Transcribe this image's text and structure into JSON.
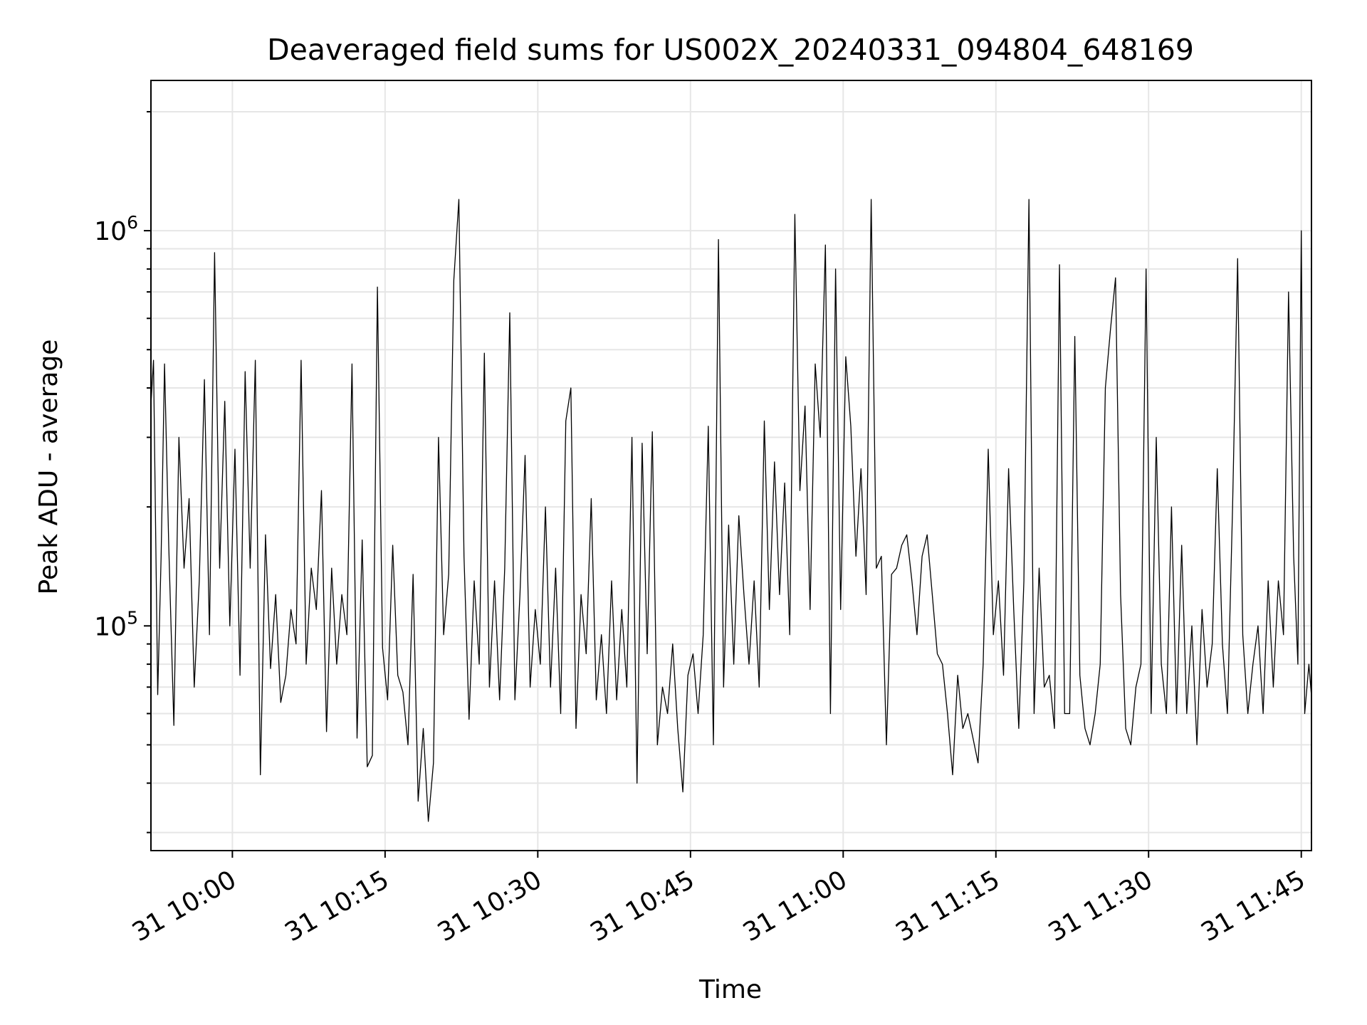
{
  "chart_data": {
    "type": "line",
    "title": "Deaveraged field sums for US002X_20240331_094804_648169",
    "xlabel": "Time",
    "ylabel": "Peak ADU - average",
    "yscale": "log",
    "ylim": [
      27000,
      2400000
    ],
    "xlim": [
      "31 09:52",
      "31 11:46"
    ],
    "grid": true,
    "line_color": "#000000",
    "grid_color": "#e6e6e6",
    "x_ticks": [
      {
        "label": "31 10:00",
        "value": "31 10:00"
      },
      {
        "label": "31 10:15",
        "value": "31 10:15"
      },
      {
        "label": "31 10:30",
        "value": "31 10:30"
      },
      {
        "label": "31 10:45",
        "value": "31 10:45"
      },
      {
        "label": "31 11:00",
        "value": "31 11:00"
      },
      {
        "label": "31 11:15",
        "value": "31 11:15"
      },
      {
        "label": "31 11:30",
        "value": "31 11:30"
      },
      {
        "label": "31 11:45",
        "value": "31 11:45"
      }
    ],
    "y_ticks": [
      {
        "base": "10",
        "exp": "5",
        "value": 100000
      },
      {
        "base": "10",
        "exp": "6",
        "value": 1000000
      }
    ],
    "series": [
      {
        "points": [
          [
            "31 09:52",
            280000
          ],
          [
            "31 09:52",
            470000
          ],
          [
            "31 09:53",
            67000
          ],
          [
            "31 09:53",
            150000
          ],
          [
            "31 09:53",
            460000
          ],
          [
            "31 09:54",
            160000
          ],
          [
            "31 09:54",
            56000
          ],
          [
            "31 09:55",
            300000
          ],
          [
            "31 09:55",
            140000
          ],
          [
            "31 09:56",
            210000
          ],
          [
            "31 09:56",
            70000
          ],
          [
            "31 09:57",
            130000
          ],
          [
            "31 09:57",
            420000
          ],
          [
            "31 09:58",
            95000
          ],
          [
            "31 09:58",
            880000
          ],
          [
            "31 09:59",
            140000
          ],
          [
            "31 09:59",
            370000
          ],
          [
            "31 10:00",
            100000
          ],
          [
            "31 10:00",
            280000
          ],
          [
            "31 10:01",
            75000
          ],
          [
            "31 10:01",
            440000
          ],
          [
            "31 10:02",
            140000
          ],
          [
            "31 10:02",
            470000
          ],
          [
            "31 10:03",
            42000
          ],
          [
            "31 10:03",
            170000
          ],
          [
            "31 10:04",
            78000
          ],
          [
            "31 10:04",
            120000
          ],
          [
            "31 10:05",
            64000
          ],
          [
            "31 10:05",
            75000
          ],
          [
            "31 10:06",
            110000
          ],
          [
            "31 10:06",
            90000
          ],
          [
            "31 10:07",
            470000
          ],
          [
            "31 10:07",
            80000
          ],
          [
            "31 10:08",
            140000
          ],
          [
            "31 10:08",
            110000
          ],
          [
            "31 10:09",
            220000
          ],
          [
            "31 10:09",
            54000
          ],
          [
            "31 10:10",
            140000
          ],
          [
            "31 10:10",
            80000
          ],
          [
            "31 10:11",
            120000
          ],
          [
            "31 10:11",
            95000
          ],
          [
            "31 10:12",
            460000
          ],
          [
            "31 10:12",
            52000
          ],
          [
            "31 10:13",
            165000
          ],
          [
            "31 10:13",
            44000
          ],
          [
            "31 10:14",
            47000
          ],
          [
            "31 10:14",
            720000
          ],
          [
            "31 10:15",
            88000
          ],
          [
            "31 10:15",
            65000
          ],
          [
            "31 10:16",
            160000
          ],
          [
            "31 10:16",
            75000
          ],
          [
            "31 10:17",
            68000
          ],
          [
            "31 10:17",
            50000
          ],
          [
            "31 10:18",
            135000
          ],
          [
            "31 10:18",
            36000
          ],
          [
            "31 10:19",
            55000
          ],
          [
            "31 10:19",
            32000
          ],
          [
            "31 10:20",
            45000
          ],
          [
            "31 10:20",
            300000
          ],
          [
            "31 10:21",
            95000
          ],
          [
            "31 10:21",
            135000
          ],
          [
            "31 10:22",
            750000
          ],
          [
            "31 10:22",
            1200000
          ],
          [
            "31 10:23",
            150000
          ],
          [
            "31 10:23",
            58000
          ],
          [
            "31 10:24",
            130000
          ],
          [
            "31 10:24",
            80000
          ],
          [
            "31 10:25",
            490000
          ],
          [
            "31 10:25",
            70000
          ],
          [
            "31 10:26",
            130000
          ],
          [
            "31 10:26",
            65000
          ],
          [
            "31 10:27",
            140000
          ],
          [
            "31 10:27",
            620000
          ],
          [
            "31 10:28",
            65000
          ],
          [
            "31 10:28",
            120000
          ],
          [
            "31 10:29",
            270000
          ],
          [
            "31 10:29",
            70000
          ],
          [
            "31 10:30",
            110000
          ],
          [
            "31 10:30",
            80000
          ],
          [
            "31 10:31",
            200000
          ],
          [
            "31 10:31",
            70000
          ],
          [
            "31 10:32",
            140000
          ],
          [
            "31 10:32",
            60000
          ],
          [
            "31 10:33",
            330000
          ],
          [
            "31 10:33",
            400000
          ],
          [
            "31 10:34",
            55000
          ],
          [
            "31 10:34",
            120000
          ],
          [
            "31 10:35",
            85000
          ],
          [
            "31 10:35",
            210000
          ],
          [
            "31 10:36",
            65000
          ],
          [
            "31 10:36",
            95000
          ],
          [
            "31 10:37",
            60000
          ],
          [
            "31 10:37",
            130000
          ],
          [
            "31 10:38",
            65000
          ],
          [
            "31 10:38",
            110000
          ],
          [
            "31 10:39",
            70000
          ],
          [
            "31 10:39",
            300000
          ],
          [
            "31 10:40",
            40000
          ],
          [
            "31 10:40",
            290000
          ],
          [
            "31 10:41",
            85000
          ],
          [
            "31 10:41",
            310000
          ],
          [
            "31 10:42",
            50000
          ],
          [
            "31 10:42",
            70000
          ],
          [
            "31 10:43",
            60000
          ],
          [
            "31 10:43",
            90000
          ],
          [
            "31 10:44",
            55000
          ],
          [
            "31 10:44",
            38000
          ],
          [
            "31 10:45",
            75000
          ],
          [
            "31 10:45",
            85000
          ],
          [
            "31 10:46",
            60000
          ],
          [
            "31 10:46",
            95000
          ],
          [
            "31 10:47",
            320000
          ],
          [
            "31 10:47",
            50000
          ],
          [
            "31 10:48",
            950000
          ],
          [
            "31 10:48",
            70000
          ],
          [
            "31 10:49",
            180000
          ],
          [
            "31 10:49",
            80000
          ],
          [
            "31 10:50",
            190000
          ],
          [
            "31 10:50",
            120000
          ],
          [
            "31 10:51",
            80000
          ],
          [
            "31 10:51",
            130000
          ],
          [
            "31 10:52",
            70000
          ],
          [
            "31 10:52",
            330000
          ],
          [
            "31 10:53",
            110000
          ],
          [
            "31 10:53",
            260000
          ],
          [
            "31 10:54",
            120000
          ],
          [
            "31 10:54",
            230000
          ],
          [
            "31 10:55",
            95000
          ],
          [
            "31 10:55",
            1100000
          ],
          [
            "31 10:56",
            220000
          ],
          [
            "31 10:56",
            360000
          ],
          [
            "31 10:57",
            110000
          ],
          [
            "31 10:57",
            460000
          ],
          [
            "31 10:58",
            300000
          ],
          [
            "31 10:58",
            920000
          ],
          [
            "31 10:59",
            60000
          ],
          [
            "31 10:59",
            800000
          ],
          [
            "31 11:00",
            110000
          ],
          [
            "31 11:00",
            480000
          ],
          [
            "31 11:01",
            320000
          ],
          [
            "31 11:01",
            150000
          ],
          [
            "31 11:02",
            250000
          ],
          [
            "31 11:02",
            120000
          ],
          [
            "31 11:03",
            1200000
          ],
          [
            "31 11:03",
            140000
          ],
          [
            "31 11:04",
            150000
          ],
          [
            "31 11:04",
            50000
          ],
          [
            "31 11:05",
            135000
          ],
          [
            "31 11:05",
            140000
          ],
          [
            "31 11:06",
            160000
          ],
          [
            "31 11:06",
            170000
          ],
          [
            "31 11:07",
            130000
          ],
          [
            "31 11:07",
            95000
          ],
          [
            "31 11:08",
            150000
          ],
          [
            "31 11:08",
            170000
          ],
          [
            "31 11:09",
            120000
          ],
          [
            "31 11:09",
            85000
          ],
          [
            "31 11:10",
            80000
          ],
          [
            "31 11:10",
            60000
          ],
          [
            "31 11:11",
            42000
          ],
          [
            "31 11:11",
            75000
          ],
          [
            "31 11:12",
            55000
          ],
          [
            "31 11:12",
            60000
          ],
          [
            "31 11:13",
            52000
          ],
          [
            "31 11:13",
            45000
          ],
          [
            "31 11:14",
            80000
          ],
          [
            "31 11:14",
            280000
          ],
          [
            "31 11:15",
            95000
          ],
          [
            "31 11:15",
            130000
          ],
          [
            "31 11:16",
            75000
          ],
          [
            "31 11:16",
            250000
          ],
          [
            "31 11:17",
            110000
          ],
          [
            "31 11:17",
            55000
          ],
          [
            "31 11:18",
            130000
          ],
          [
            "31 11:18",
            1200000
          ],
          [
            "31 11:19",
            60000
          ],
          [
            "31 11:19",
            140000
          ],
          [
            "31 11:20",
            70000
          ],
          [
            "31 11:20",
            75000
          ],
          [
            "31 11:21",
            55000
          ],
          [
            "31 11:21",
            820000
          ],
          [
            "31 11:22",
            60000
          ],
          [
            "31 11:22",
            60000
          ],
          [
            "31 11:23",
            540000
          ],
          [
            "31 11:23",
            75000
          ],
          [
            "31 11:24",
            55000
          ],
          [
            "31 11:24",
            50000
          ],
          [
            "31 11:25",
            60000
          ],
          [
            "31 11:25",
            80000
          ],
          [
            "31 11:26",
            400000
          ],
          [
            "31 11:26",
            560000
          ],
          [
            "31 11:27",
            760000
          ],
          [
            "31 11:27",
            120000
          ],
          [
            "31 11:28",
            55000
          ],
          [
            "31 11:28",
            50000
          ],
          [
            "31 11:29",
            70000
          ],
          [
            "31 11:29",
            80000
          ],
          [
            "31 11:30",
            800000
          ],
          [
            "31 11:30",
            60000
          ],
          [
            "31 11:31",
            300000
          ],
          [
            "31 11:31",
            80000
          ],
          [
            "31 11:32",
            60000
          ],
          [
            "31 11:32",
            200000
          ],
          [
            "31 11:33",
            60000
          ],
          [
            "31 11:33",
            160000
          ],
          [
            "31 11:34",
            60000
          ],
          [
            "31 11:34",
            100000
          ],
          [
            "31 11:35",
            50000
          ],
          [
            "31 11:35",
            110000
          ],
          [
            "31 11:36",
            70000
          ],
          [
            "31 11:36",
            90000
          ],
          [
            "31 11:37",
            250000
          ],
          [
            "31 11:37",
            90000
          ],
          [
            "31 11:38",
            60000
          ],
          [
            "31 11:38",
            200000
          ],
          [
            "31 11:39",
            850000
          ],
          [
            "31 11:39",
            95000
          ],
          [
            "31 11:40",
            60000
          ],
          [
            "31 11:40",
            80000
          ],
          [
            "31 11:41",
            100000
          ],
          [
            "31 11:41",
            60000
          ],
          [
            "31 11:42",
            130000
          ],
          [
            "31 11:42",
            70000
          ],
          [
            "31 11:43",
            130000
          ],
          [
            "31 11:43",
            95000
          ],
          [
            "31 11:44",
            700000
          ],
          [
            "31 11:44",
            150000
          ],
          [
            "31 11:45",
            80000
          ],
          [
            "31 11:45",
            1000000
          ],
          [
            "31 11:45",
            60000
          ],
          [
            "31 11:46",
            80000
          ],
          [
            "31 11:46",
            55000
          ]
        ]
      }
    ]
  }
}
